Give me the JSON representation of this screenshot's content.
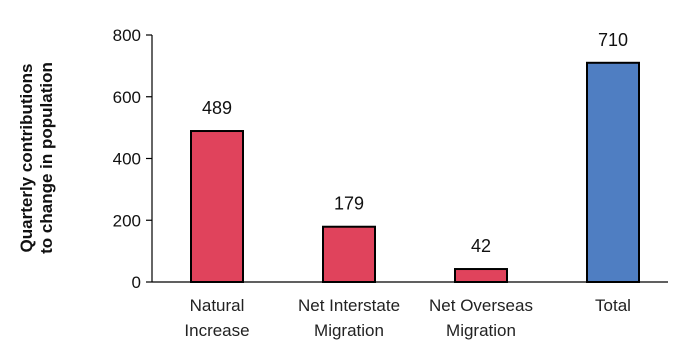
{
  "chart_data": {
    "type": "bar",
    "ylabel": "Quarterly contributions to change in population",
    "ylabel_lines": [
      "Quarterly contributions",
      "to change in population"
    ],
    "ylim": [
      0,
      800
    ],
    "yticks": [
      0,
      200,
      400,
      600,
      800
    ],
    "grid": false,
    "categories": [
      [
        "Natural",
        "Increase"
      ],
      [
        "Net Interstate",
        "Migration"
      ],
      [
        "Net Overseas",
        "Migration"
      ],
      [
        "Total"
      ]
    ],
    "values": [
      489,
      179,
      42,
      710
    ],
    "data_labels": [
      "489",
      "179",
      "42",
      "710"
    ],
    "colors": [
      "#e0435c",
      "#e0435c",
      "#e0435c",
      "#4f7ec2"
    ]
  }
}
